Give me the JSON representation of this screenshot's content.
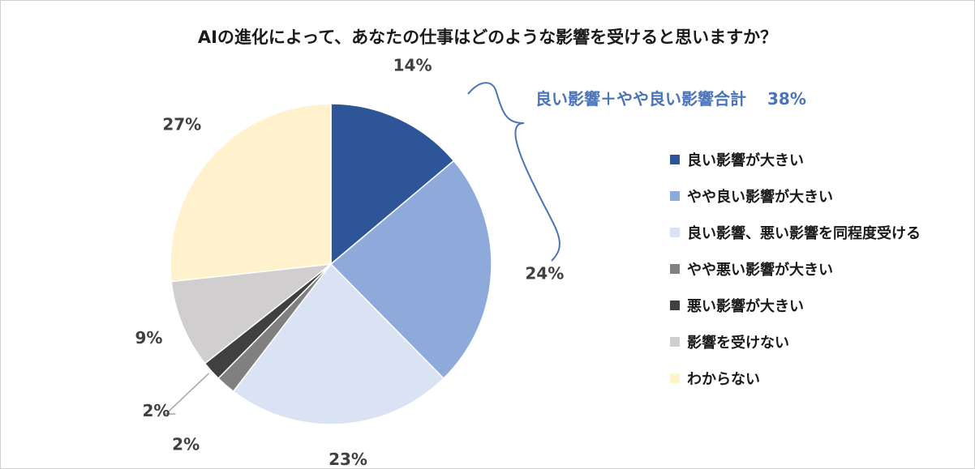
{
  "title": "AIの進化によって、あなたの仕事はどのような影響を受けると思いますか？",
  "annotation": {
    "text": "良い影響＋やや良い影響合計",
    "total": "38%",
    "color": "#4a74b8"
  },
  "chart_data": {
    "type": "pie",
    "title": "AIの進化によって、あなたの仕事はどのような影響を受けると思いますか？",
    "legend_position": "right",
    "start_angle_deg": 0,
    "direction": "clockwise",
    "slices": [
      {
        "label": "良い影響が大きい",
        "value": 14,
        "value_label": "14%",
        "color": "#2e5597"
      },
      {
        "label": "やや良い影響が大きい",
        "value": 24,
        "value_label": "24%",
        "color": "#8eaadb"
      },
      {
        "label": "良い影響、悪い影響を同程度受ける",
        "value": 23,
        "value_label": "23%",
        "color": "#dae3f3"
      },
      {
        "label": "やや悪い影響が大きい",
        "value": 2,
        "value_label": "2%",
        "color": "#808080"
      },
      {
        "label": "悪い影響が大きい",
        "value": 2,
        "value_label": "2%",
        "color": "#404040"
      },
      {
        "label": "影響を受けない",
        "value": 9,
        "value_label": "9%",
        "color": "#d0cece"
      },
      {
        "label": "わからない",
        "value": 27,
        "value_label": "27%",
        "color": "#fff2cc"
      }
    ]
  }
}
